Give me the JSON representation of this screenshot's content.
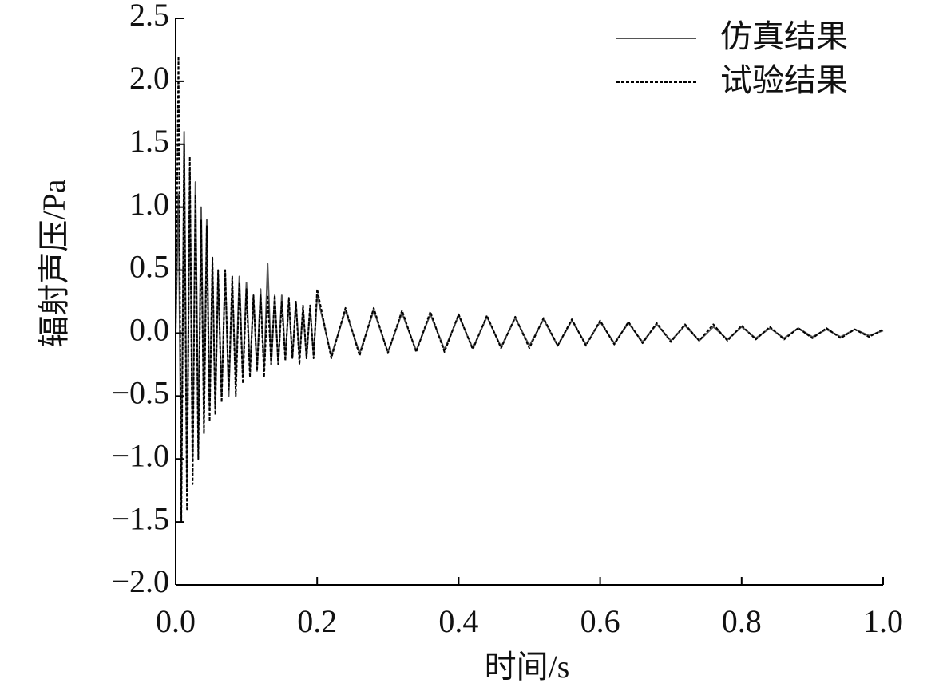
{
  "chart_data": {
    "type": "line",
    "xlabel": "时间/s",
    "ylabel": "辐射声压/Pa",
    "x": [
      0,
      0.004,
      0.008,
      0.012,
      0.016,
      0.02,
      0.024,
      0.028,
      0.032,
      0.036,
      0.04,
      0.044,
      0.048,
      0.052,
      0.056,
      0.06,
      0.065,
      0.07,
      0.075,
      0.08,
      0.085,
      0.09,
      0.095,
      0.1,
      0.105,
      0.11,
      0.115,
      0.12,
      0.125,
      0.13,
      0.135,
      0.14,
      0.145,
      0.15,
      0.155,
      0.16,
      0.165,
      0.17,
      0.175,
      0.18,
      0.185,
      0.19,
      0.195,
      0.2,
      0.22,
      0.24,
      0.26,
      0.28,
      0.3,
      0.32,
      0.34,
      0.36,
      0.38,
      0.4,
      0.42,
      0.44,
      0.46,
      0.48,
      0.5,
      0.52,
      0.54,
      0.56,
      0.58,
      0.6,
      0.62,
      0.64,
      0.66,
      0.68,
      0.7,
      0.72,
      0.74,
      0.76,
      0.78,
      0.8,
      0.82,
      0.84,
      0.86,
      0.88,
      0.9,
      0.92,
      0.94,
      0.96,
      0.98,
      1.0
    ],
    "series": [
      {
        "name": "仿真结果",
        "color": "#555555",
        "dashed": false,
        "values": [
          0,
          1.1,
          -1.3,
          1.6,
          -1.2,
          1.3,
          -1.0,
          1.2,
          -0.9,
          1.0,
          -0.7,
          0.9,
          -0.6,
          0.55,
          -0.6,
          0.45,
          -0.5,
          0.5,
          -0.5,
          0.4,
          -0.4,
          0.45,
          -0.35,
          0.4,
          -0.3,
          0.3,
          -0.3,
          0.35,
          -0.3,
          0.55,
          -0.25,
          0.3,
          -0.25,
          0.3,
          -0.2,
          0.25,
          -0.2,
          0.25,
          -0.2,
          0.2,
          -0.2,
          0.2,
          -0.18,
          0.3,
          -0.18,
          0.18,
          -0.16,
          0.18,
          -0.15,
          0.16,
          -0.14,
          0.15,
          -0.13,
          0.14,
          -0.12,
          0.13,
          -0.11,
          0.12,
          -0.1,
          0.11,
          -0.1,
          0.1,
          -0.09,
          0.09,
          -0.08,
          0.08,
          -0.07,
          0.07,
          -0.06,
          0.06,
          -0.06,
          0.05,
          -0.05,
          0.05,
          -0.04,
          0.04,
          -0.04,
          0.04,
          -0.03,
          0.03,
          -0.03,
          0.03,
          -0.02,
          0.02
        ]
      },
      {
        "name": "试验结果",
        "color": "#000000",
        "dashed": true,
        "values": [
          0,
          2.2,
          -1.5,
          1.5,
          -1.4,
          1.4,
          -1.2,
          1.1,
          -1.0,
          0.9,
          -0.8,
          0.85,
          -0.7,
          0.6,
          -0.65,
          0.5,
          -0.55,
          0.5,
          -0.45,
          0.45,
          -0.5,
          0.4,
          -0.4,
          0.35,
          -0.35,
          0.3,
          -0.3,
          0.3,
          -0.35,
          0.3,
          -0.25,
          0.3,
          -0.25,
          0.25,
          -0.22,
          0.28,
          -0.2,
          0.25,
          -0.25,
          0.22,
          -0.2,
          0.22,
          -0.2,
          0.35,
          -0.2,
          0.2,
          -0.18,
          0.2,
          -0.16,
          0.18,
          -0.15,
          0.17,
          -0.15,
          0.15,
          -0.13,
          0.14,
          -0.12,
          0.13,
          -0.12,
          0.12,
          -0.1,
          0.11,
          -0.1,
          0.1,
          -0.09,
          0.09,
          -0.08,
          0.08,
          -0.07,
          0.07,
          -0.06,
          0.07,
          -0.06,
          0.06,
          -0.05,
          0.05,
          -0.05,
          0.04,
          -0.04,
          0.04,
          -0.04,
          0.03,
          -0.03,
          0.03
        ]
      }
    ],
    "xlim": [
      0,
      1.0
    ],
    "xticks": [
      {
        "value": 0,
        "label": "0.0"
      },
      0.2,
      0.4,
      0.6,
      0.8,
      {
        "value": 1,
        "label": "1.0"
      }
    ],
    "ylim": [
      -2.0,
      2.5
    ],
    "yticks": [
      {
        "value": -2,
        "label": "−2.0"
      },
      {
        "value": -1.5,
        "label": "−1.5"
      },
      {
        "value": -1,
        "label": "−1.0"
      },
      {
        "value": -0.5,
        "label": "−0.5"
      },
      {
        "value": 0,
        "label": "0.0"
      },
      0.5,
      {
        "value": 1,
        "label": "1.0"
      },
      1.5,
      {
        "value": 2,
        "label": "2.0"
      },
      2.5
    ],
    "grid": false,
    "legend": "upper right"
  }
}
